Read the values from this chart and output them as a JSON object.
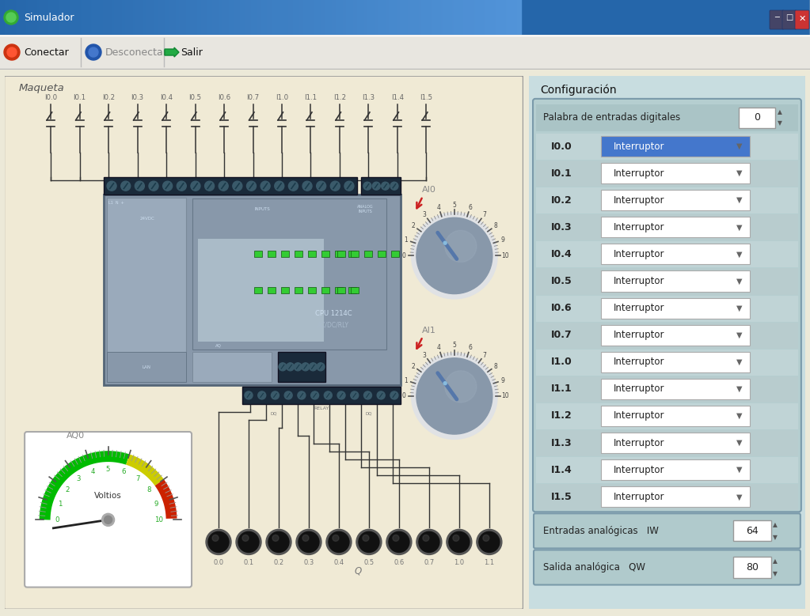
{
  "title_bar": "Simulador",
  "left_panel_title": "Maqueta",
  "right_panel_title": "Configuración",
  "input_labels": [
    "I0.0",
    "I0.1",
    "I0.2",
    "I0.3",
    "I0.4",
    "I0.5",
    "I0.6",
    "I0.7",
    "I1.0",
    "I1.1",
    "I1.2",
    "I1.3",
    "I1.4",
    "I1.5"
  ],
  "config_rows": [
    "I0.0",
    "I0.1",
    "I0.2",
    "I0.3",
    "I0.4",
    "I0.5",
    "I0.6",
    "I0.7",
    "I1.0",
    "I1.1",
    "I1.2",
    "I1.3",
    "I1.4",
    "I1.5"
  ],
  "dropdown_text": "Interruptor",
  "palabra_label": "Palabra de entradas digitales",
  "palabra_value": "0",
  "entradas_label": "Entradas analógicas   IW",
  "entradas_value": "64",
  "salida_label": "Salida analógica   QW",
  "salida_value": "80",
  "ai0_label": "AI0",
  "ai1_label": "AI1",
  "aq0_label": "AQ0",
  "q_label": "Q",
  "voltios_label": "Voltios",
  "output_labels": [
    "0.0",
    "0.1",
    "0.2",
    "0.3",
    "0.4",
    "0.5",
    "0.6",
    "0.7",
    "1.0",
    "1.1"
  ],
  "bg_outer": "#ece9d8",
  "bg_main": "#f0ead5",
  "bg_right_panel": "#c8dde0",
  "titlebar_grad_left": "#1a5fa8",
  "titlebar_grad_right": "#4a90d9",
  "toolbar_bg": "#e8e6e0",
  "plc_body": "#8898aa",
  "plc_dark": "#223344",
  "plc_medium": "#445566",
  "plc_light_bg": "#aab8c4",
  "screw_color": "#7a8a9a",
  "led_green": "#33cc33",
  "led_dark": "#006600",
  "gauge_green": "#00bb00",
  "gauge_yellow": "#cccc00",
  "gauge_red": "#cc2200",
  "knob_outer": "#c8ccd0",
  "knob_face": "#8899aa",
  "knob_indicator": "#88aacc",
  "config_first_highlight": "#4477cc",
  "config_box_bg": "#b5ced0",
  "config_row_bg_a": "#c0d4d6",
  "config_row_bg_b": "#b8ccce",
  "palabra_header_bg": "#aac4c6",
  "bottom_panel_bg": "#b0cacc",
  "white": "#ffffff",
  "text_dark": "#222222",
  "text_mid": "#555555",
  "text_light": "#888888",
  "wire_color": "#333333",
  "border_color": "#7a9aaa"
}
